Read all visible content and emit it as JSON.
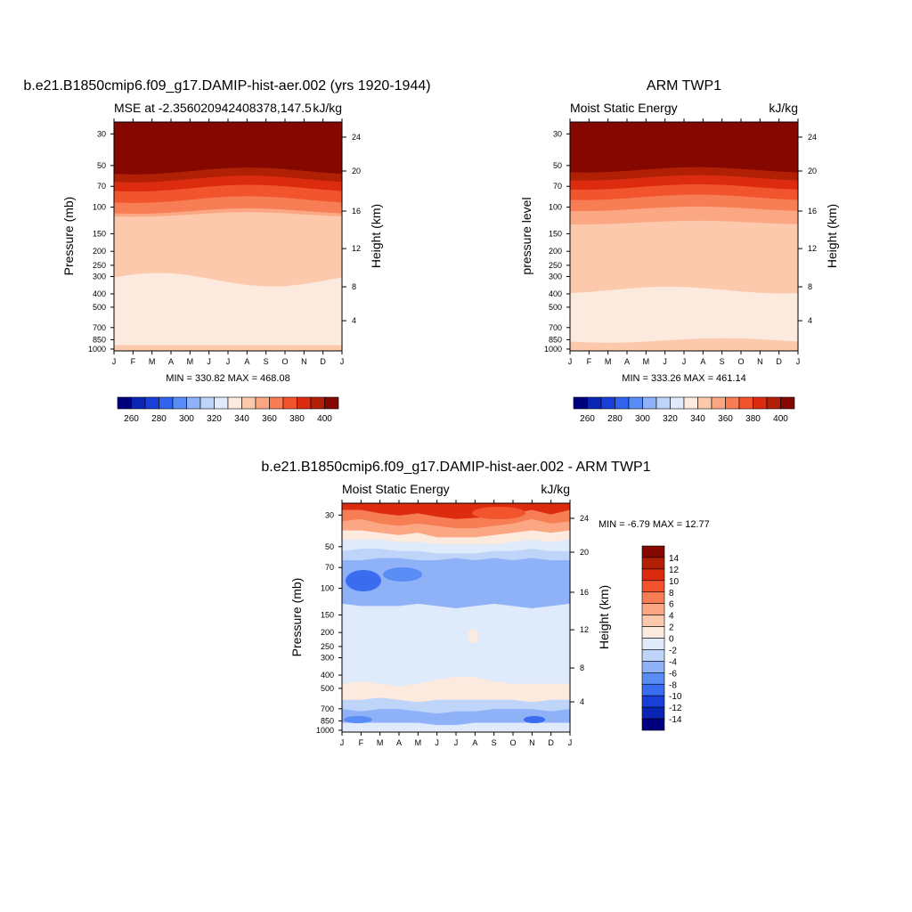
{
  "colors": {
    "seq": [
      "#00007f",
      "#0a24b4",
      "#1a3fd9",
      "#2f63f0",
      "#5a8cf5",
      "#8fb1f7",
      "#bed4f9",
      "#dfeafb",
      "#fdeade",
      "#fcc9ad",
      "#fba784",
      "#f77e54",
      "#f2552e",
      "#dd2b10",
      "#b11f05",
      "#850800"
    ],
    "diff": [
      "#00007f",
      "#0a24b4",
      "#1a3fd9",
      "#3a6cf0",
      "#5a8cf5",
      "#8fb1f7",
      "#bed4f9",
      "#dfeafb",
      "#fdeade",
      "#fcc9ad",
      "#fba784",
      "#f77e54",
      "#f2552e",
      "#dd2b10",
      "#b11f05",
      "#850800"
    ]
  },
  "chart_data": [
    {
      "type": "heatmap",
      "title": "b.e21.B1850cmip6.f09_g17.DAMIP-hist-aer.002 (yrs 1920-1944)",
      "subtitle_left": "MSE at -2.356020942408378,147.5",
      "subtitle_right": "kJ/kg",
      "ylabel": "Pressure (mb)",
      "ylabel_right": "Height (km)",
      "x": [
        "J",
        "F",
        "M",
        "A",
        "M",
        "J",
        "J",
        "A",
        "S",
        "O",
        "N",
        "D",
        "J"
      ],
      "yticks": [
        "30",
        "50",
        "70",
        "100",
        "150",
        "200",
        "250",
        "300",
        "400",
        "500",
        "700",
        "850",
        "1000"
      ],
      "yticks_right": [
        "24",
        "20",
        "16",
        "12",
        "8",
        "4"
      ],
      "stats": "MIN = 330.82 MAX = 468.08",
      "colorbar_labels": [
        "260",
        "280",
        "300",
        "320",
        "340",
        "360",
        "380",
        "400"
      ],
      "colorbar_levels": [
        255,
        260,
        265,
        270,
        275,
        280,
        285,
        290,
        295,
        300,
        305,
        310,
        315,
        320,
        325,
        330,
        335,
        340,
        345,
        350,
        355,
        360,
        365,
        370,
        375,
        380,
        385,
        390,
        395,
        400,
        405
      ]
    },
    {
      "type": "heatmap",
      "title": "ARM TWP1",
      "subtitle_left": "Moist Static Energy",
      "subtitle_right": "kJ/kg",
      "ylabel": "pressure level",
      "ylabel_right": "Height (km)",
      "x": [
        "J",
        "F",
        "M",
        "A",
        "M",
        "J",
        "J",
        "A",
        "S",
        "O",
        "N",
        "D",
        "J"
      ],
      "yticks": [
        "30",
        "50",
        "70",
        "100",
        "150",
        "200",
        "250",
        "300",
        "400",
        "500",
        "700",
        "850",
        "1000"
      ],
      "yticks_right": [
        "24",
        "20",
        "16",
        "12",
        "8",
        "4"
      ],
      "stats": "MIN = 333.26 MAX = 461.14",
      "colorbar_labels": [
        "260",
        "280",
        "300",
        "320",
        "340",
        "360",
        "380",
        "400"
      ]
    },
    {
      "type": "heatmap",
      "title": "b.e21.B1850cmip6.f09_g17.DAMIP-hist-aer.002 - ARM TWP1",
      "subtitle_left": "Moist Static Energy",
      "subtitle_right": "kJ/kg",
      "ylabel": "Pressure (mb)",
      "ylabel_right": "Height (km)",
      "x": [
        "J",
        "F",
        "M",
        "A",
        "M",
        "J",
        "J",
        "A",
        "S",
        "O",
        "N",
        "D",
        "J"
      ],
      "yticks": [
        "30",
        "50",
        "70",
        "100",
        "150",
        "200",
        "250",
        "300",
        "400",
        "500",
        "700",
        "850",
        "1000"
      ],
      "yticks_right": [
        "24",
        "20",
        "16",
        "12",
        "8",
        "4"
      ],
      "stats": "MIN =  -6.79 MAX =  12.77",
      "colorbar_labels": [
        "14",
        "12",
        "10",
        "8",
        "6",
        "4",
        "2",
        "0",
        "-2",
        "-4",
        "-6",
        "-8",
        "-10",
        "-12",
        "-14"
      ]
    }
  ]
}
